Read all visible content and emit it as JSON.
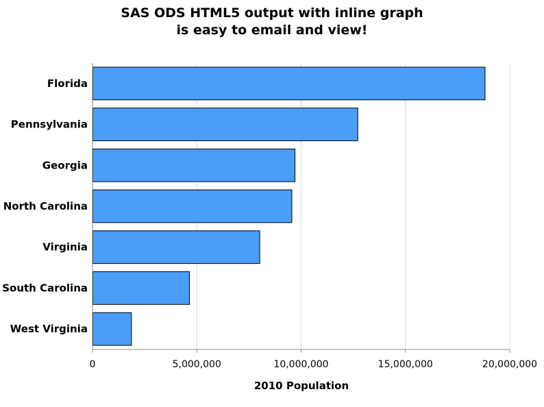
{
  "chart_data": {
    "type": "bar",
    "orientation": "horizontal",
    "title_lines": [
      "SAS ODS HTML5 output with inline graph",
      "is easy to email and view!"
    ],
    "categories": [
      "Florida",
      "Pennsylvania",
      "Georgia",
      "North Carolina",
      "Virginia",
      "South Carolina",
      "West Virginia"
    ],
    "values": [
      18800000,
      12700000,
      9690000,
      9540000,
      8000000,
      4630000,
      1850000
    ],
    "xlabel": "2010 Population",
    "ylabel": "",
    "xlim": [
      0,
      20000000
    ],
    "xticks": [
      0,
      5000000,
      10000000,
      15000000,
      20000000
    ],
    "xtick_labels": [
      "0",
      "5,000,000",
      "10,000,000",
      "15,000,000",
      "20,000,000"
    ],
    "grid": "vertical",
    "legend": "none",
    "bar_color": "#4a9ef8",
    "bar_edge_color": "#000000",
    "grid_color": "#dddddd",
    "axis_color": "#888888"
  }
}
